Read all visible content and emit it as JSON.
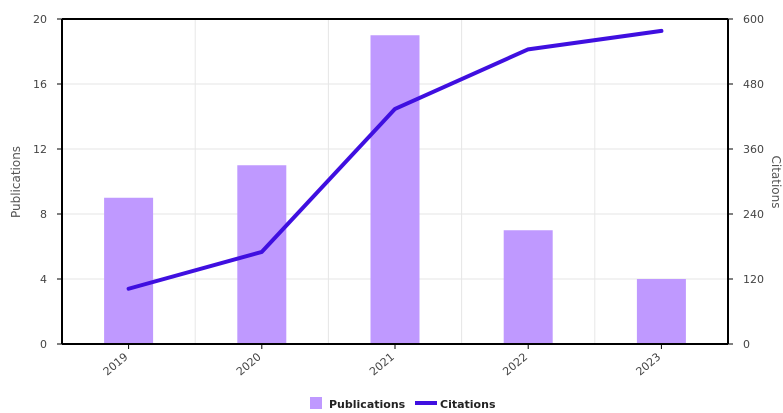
{
  "chart_data": {
    "type": "bar",
    "categories": [
      "2019",
      "2020",
      "2021",
      "2022",
      "2023"
    ],
    "series": [
      {
        "name": "Publications",
        "kind": "bar",
        "axis": "left",
        "color": "#bf99ff",
        "values": [
          9,
          11,
          19,
          7,
          4
        ]
      },
      {
        "name": "Citations",
        "kind": "line",
        "axis": "right",
        "color": "#3f0fe0",
        "values": [
          102,
          170,
          434,
          544,
          578
        ]
      }
    ],
    "title": "",
    "xlabel": "",
    "ylabel": "Publications",
    "y2label": "Citations",
    "ylim": [
      0,
      20
    ],
    "y2lim": [
      0,
      600
    ],
    "yticks": [
      0,
      4,
      8,
      12,
      16,
      20
    ],
    "y2ticks": [
      0,
      120,
      240,
      360,
      480,
      600
    ],
    "grid": true,
    "legend_position": "bottom-center"
  }
}
